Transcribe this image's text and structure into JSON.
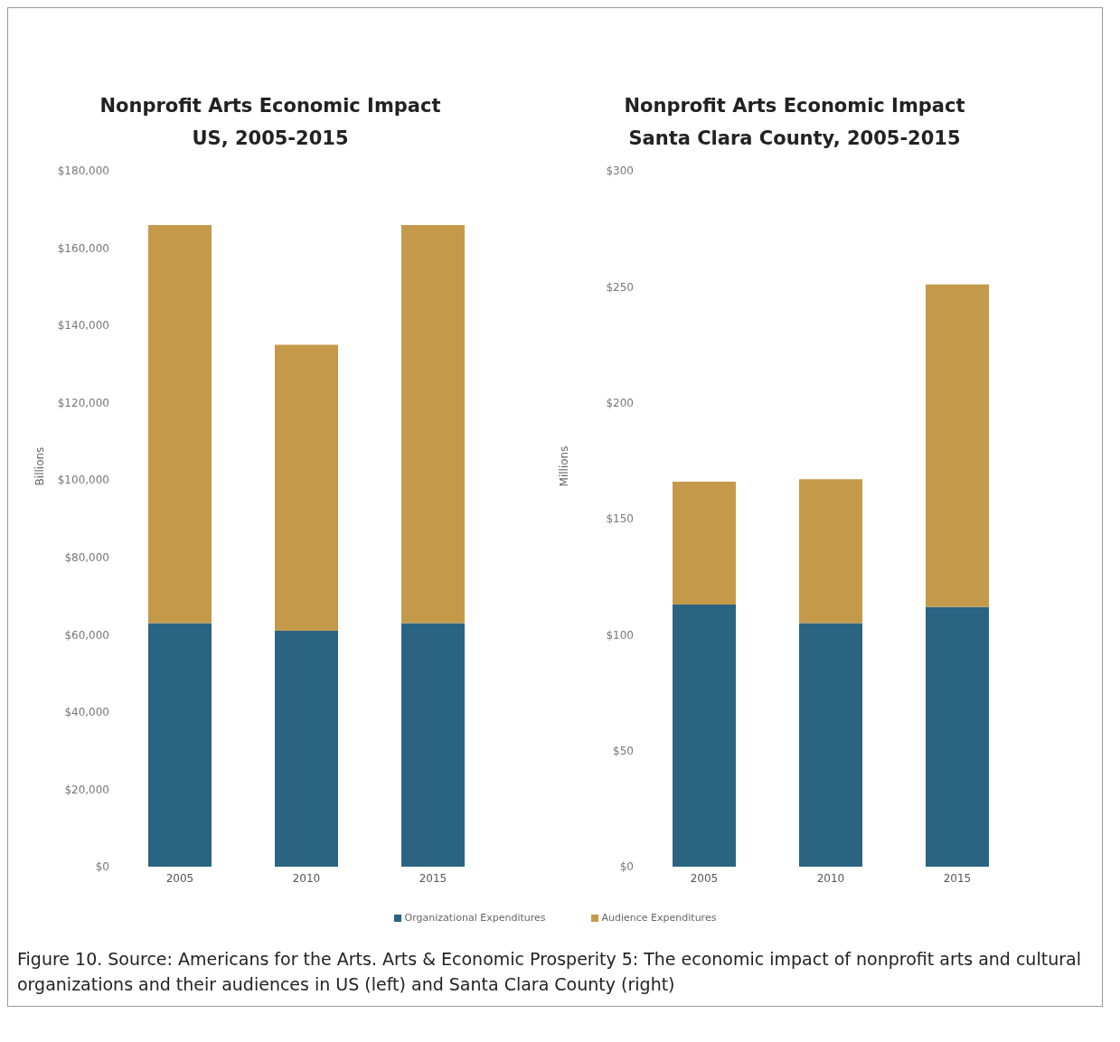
{
  "chart_data": [
    {
      "type": "bar",
      "title": "Nonprofit Arts Economic Impact\nUS, 2005-2015",
      "ylabel": "Billions",
      "categories": [
        "2005",
        "2010",
        "2015"
      ],
      "stacked": true,
      "grid": false,
      "legend": "bottom",
      "series": [
        {
          "name": "Organizational Expenditures",
          "color": "#2a6482",
          "values": [
            63000,
            61000,
            63000
          ]
        },
        {
          "name": "Audience Expenditures",
          "color": "#c49a4a",
          "values": [
            103000,
            74000,
            103000
          ]
        }
      ],
      "ylim": [
        0,
        180000
      ],
      "yticks": [
        {
          "value": 0,
          "label": "$0"
        },
        {
          "value": 20000,
          "label": "$20,000"
        },
        {
          "value": 40000,
          "label": "$40,000"
        },
        {
          "value": 60000,
          "label": "$60,000"
        },
        {
          "value": 80000,
          "label": "$80,000"
        },
        {
          "value": 100000,
          "label": "$100,000"
        },
        {
          "value": 120000,
          "label": "$120,000"
        },
        {
          "value": 140000,
          "label": "$140,000"
        },
        {
          "value": 160000,
          "label": "$160,000"
        },
        {
          "value": 180000,
          "label": "$180,000"
        }
      ],
      "annotations": [
        "Figure 10. Source: Americans for the Arts. Arts & Economic Prosperity 5: The economic impact of nonprofit arts and cultural organizations and their audiences in US (left) and Santa Clara County (right)"
      ]
    },
    {
      "type": "bar",
      "title": "Nonprofit Arts Economic Impact\nSanta Clara County, 2005-2015",
      "ylabel": "Millions",
      "categories": [
        "2005",
        "2010",
        "2015"
      ],
      "stacked": true,
      "grid": false,
      "series": [
        {
          "color": "#2a6482",
          "values": [
            113,
            105,
            112
          ]
        },
        {
          "color": "#c49a4a",
          "values": [
            53,
            62,
            139
          ]
        }
      ],
      "ylim": [
        0,
        300
      ],
      "yticks": [
        {
          "value": 0,
          "label": "$0"
        },
        {
          "value": 50,
          "label": "$50"
        },
        {
          "value": 100,
          "label": "$100"
        },
        {
          "value": 150,
          "label": "$150"
        },
        {
          "value": 200,
          "label": "$200"
        },
        {
          "value": 250,
          "label": "$250"
        },
        {
          "value": 300,
          "label": "$300"
        }
      ]
    }
  ]
}
